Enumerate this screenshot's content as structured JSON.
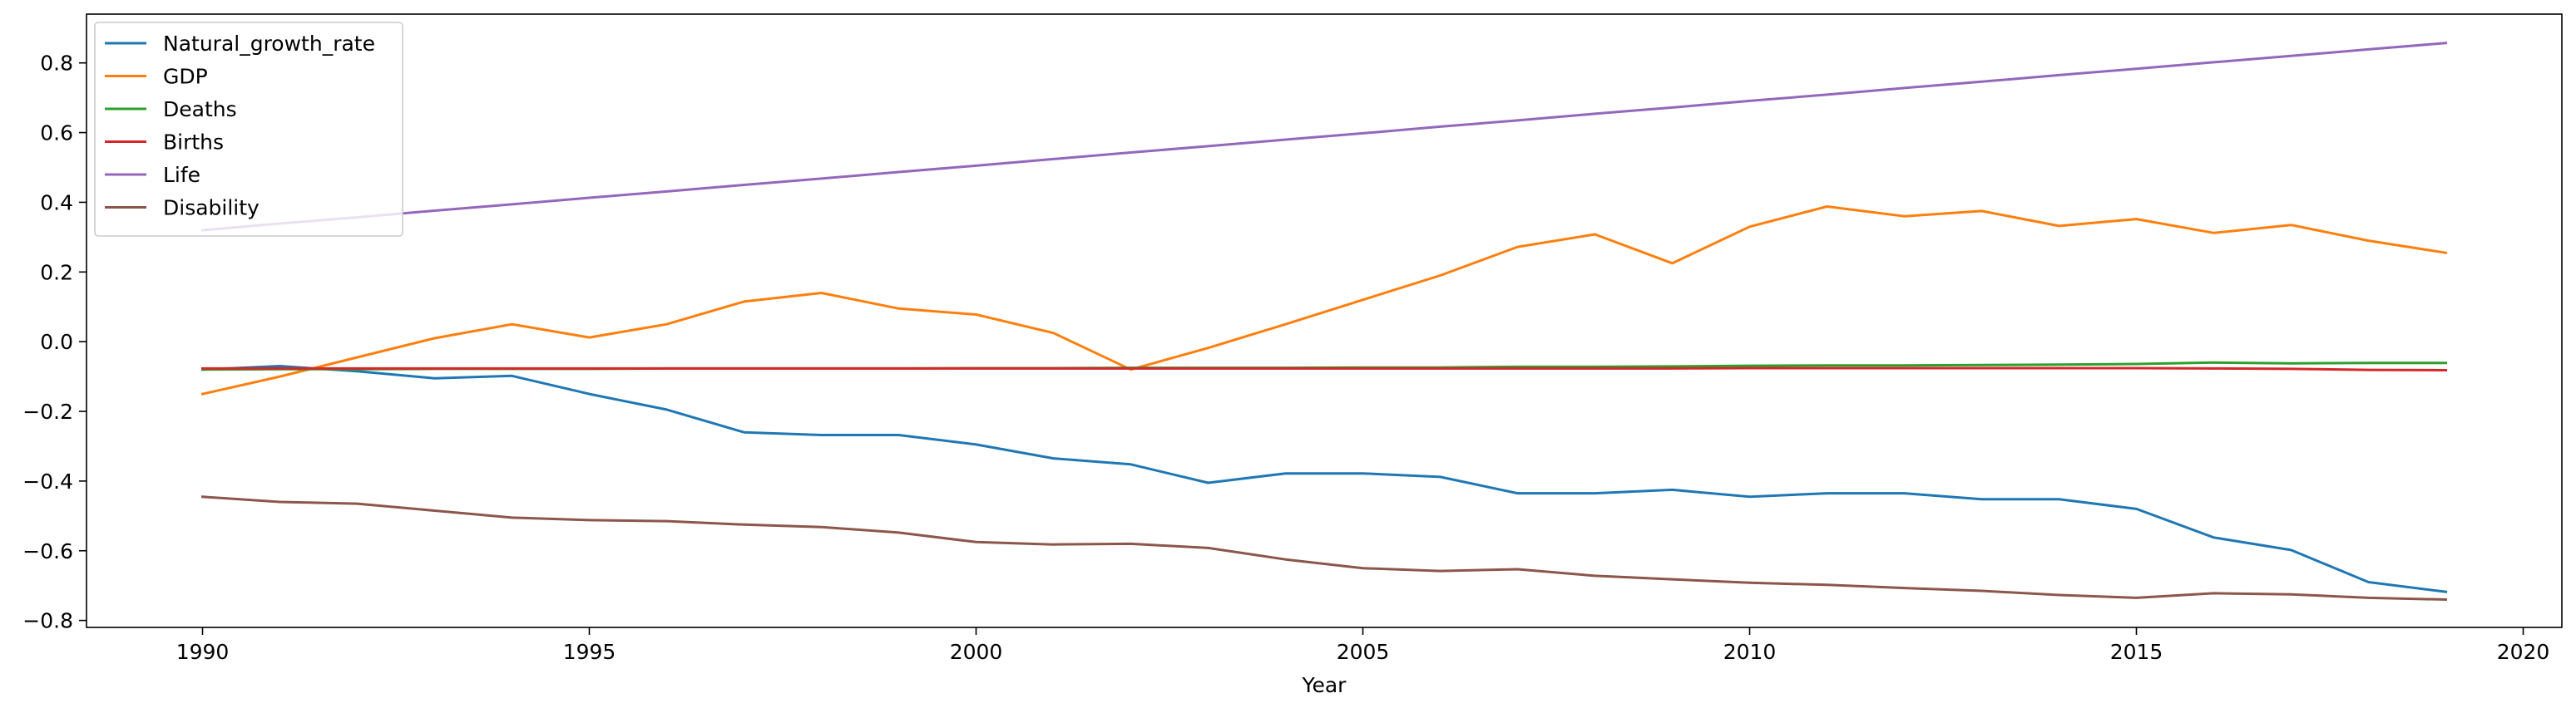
{
  "chart_data": {
    "type": "line",
    "title": "",
    "xlabel": "Year",
    "ylabel": "",
    "xlim": [
      1988.5,
      2020.5
    ],
    "ylim": [
      -0.82,
      0.94
    ],
    "xticks": [
      1990,
      1995,
      2000,
      2005,
      2010,
      2015,
      2020
    ],
    "xtick_labels": [
      "1990",
      "1995",
      "2000",
      "2005",
      "2010",
      "2015",
      "2020"
    ],
    "yticks": [
      -0.8,
      -0.6,
      -0.4,
      -0.2,
      0.0,
      0.2,
      0.4,
      0.6,
      0.8
    ],
    "ytick_labels": [
      "−0.8",
      "−0.6",
      "−0.4",
      "−0.2",
      "0.0",
      "0.2",
      "0.4",
      "0.6",
      "0.8"
    ],
    "grid": false,
    "legend_position": "top-left",
    "x": [
      1990,
      1991,
      1992,
      1993,
      1994,
      1995,
      1996,
      1997,
      1998,
      1999,
      2000,
      2001,
      2002,
      2003,
      2004,
      2005,
      2006,
      2007,
      2008,
      2009,
      2010,
      2011,
      2012,
      2013,
      2014,
      2015,
      2016,
      2017,
      2018,
      2019
    ],
    "series": [
      {
        "name": "Natural_growth_rate",
        "color": "#1f77b4",
        "values": [
          -0.08,
          -0.07,
          -0.085,
          -0.105,
          -0.098,
          -0.15,
          -0.195,
          -0.26,
          -0.268,
          -0.268,
          -0.295,
          -0.335,
          -0.352,
          -0.405,
          -0.378,
          -0.378,
          -0.388,
          -0.435,
          -0.435,
          -0.425,
          -0.445,
          -0.435,
          -0.435,
          -0.452,
          -0.452,
          -0.48,
          -0.562,
          -0.598,
          -0.69,
          -0.718
        ]
      },
      {
        "name": "GDP",
        "color": "#ff7f0e",
        "values": [
          -0.15,
          -0.1,
          -0.045,
          0.01,
          0.05,
          0.012,
          0.05,
          0.115,
          0.14,
          0.095,
          0.078,
          0.025,
          -0.08,
          -0.018,
          0.05,
          0.12,
          0.19,
          0.272,
          0.308,
          0.225,
          0.33,
          0.388,
          0.36,
          0.375,
          0.332,
          0.352,
          0.312,
          0.335,
          0.29,
          0.255
        ]
      },
      {
        "name": "Deaths",
        "color": "#2ca02c",
        "values": [
          -0.08,
          -0.079,
          -0.079,
          -0.078,
          -0.078,
          -0.078,
          -0.077,
          -0.077,
          -0.077,
          -0.077,
          -0.076,
          -0.076,
          -0.075,
          -0.075,
          -0.075,
          -0.074,
          -0.074,
          -0.072,
          -0.072,
          -0.071,
          -0.069,
          -0.068,
          -0.068,
          -0.067,
          -0.066,
          -0.064,
          -0.06,
          -0.062,
          -0.061,
          -0.061
        ]
      },
      {
        "name": "Births",
        "color": "#d62728",
        "values": [
          -0.077,
          -0.077,
          -0.077,
          -0.077,
          -0.077,
          -0.077,
          -0.077,
          -0.077,
          -0.077,
          -0.077,
          -0.077,
          -0.077,
          -0.077,
          -0.077,
          -0.077,
          -0.077,
          -0.077,
          -0.077,
          -0.077,
          -0.077,
          -0.076,
          -0.076,
          -0.076,
          -0.076,
          -0.076,
          -0.076,
          -0.077,
          -0.078,
          -0.081,
          -0.082
        ]
      },
      {
        "name": "Life",
        "color": "#9467bd",
        "values": [
          0.32,
          0.339,
          0.357,
          0.376,
          0.394,
          0.413,
          0.431,
          0.45,
          0.468,
          0.487,
          0.505,
          0.524,
          0.543,
          0.561,
          0.58,
          0.598,
          0.617,
          0.635,
          0.654,
          0.672,
          0.691,
          0.709,
          0.728,
          0.746,
          0.765,
          0.783,
          0.802,
          0.82,
          0.839,
          0.857
        ]
      },
      {
        "name": "Disability",
        "color": "#8c564b",
        "values": [
          -0.445,
          -0.46,
          -0.465,
          -0.485,
          -0.505,
          -0.512,
          -0.515,
          -0.525,
          -0.532,
          -0.548,
          -0.575,
          -0.582,
          -0.58,
          -0.592,
          -0.625,
          -0.65,
          -0.658,
          -0.653,
          -0.672,
          -0.682,
          -0.692,
          -0.698,
          -0.707,
          -0.715,
          -0.727,
          -0.735,
          -0.722,
          -0.725,
          -0.735,
          -0.74
        ]
      }
    ]
  }
}
